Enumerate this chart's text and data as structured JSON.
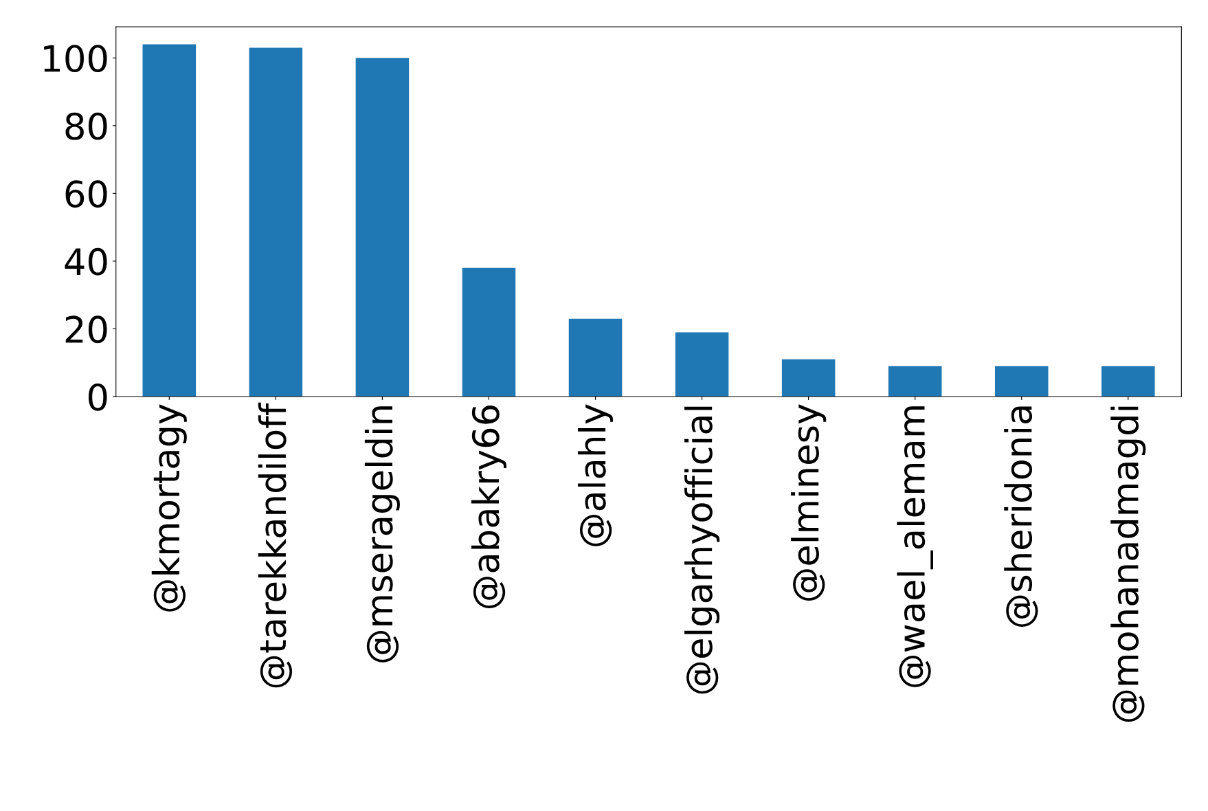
{
  "chart_data": {
    "type": "bar",
    "categories": [
      "@kmortagy",
      "@tarekkandiloff",
      "@mserageldin",
      "@abakry66",
      "@alahly",
      "@elgarhyofficial",
      "@elminesy",
      "@wael_alemam",
      "@sheridonia",
      "@mohanadmagdi"
    ],
    "values": [
      104,
      103,
      100,
      38,
      23,
      19,
      11,
      9,
      9,
      9
    ],
    "color": "#1f77b4",
    "ylim": [
      0,
      109.2
    ],
    "yticks": [
      0,
      20,
      40,
      60,
      80,
      100
    ],
    "grid": false,
    "legend": false
  }
}
